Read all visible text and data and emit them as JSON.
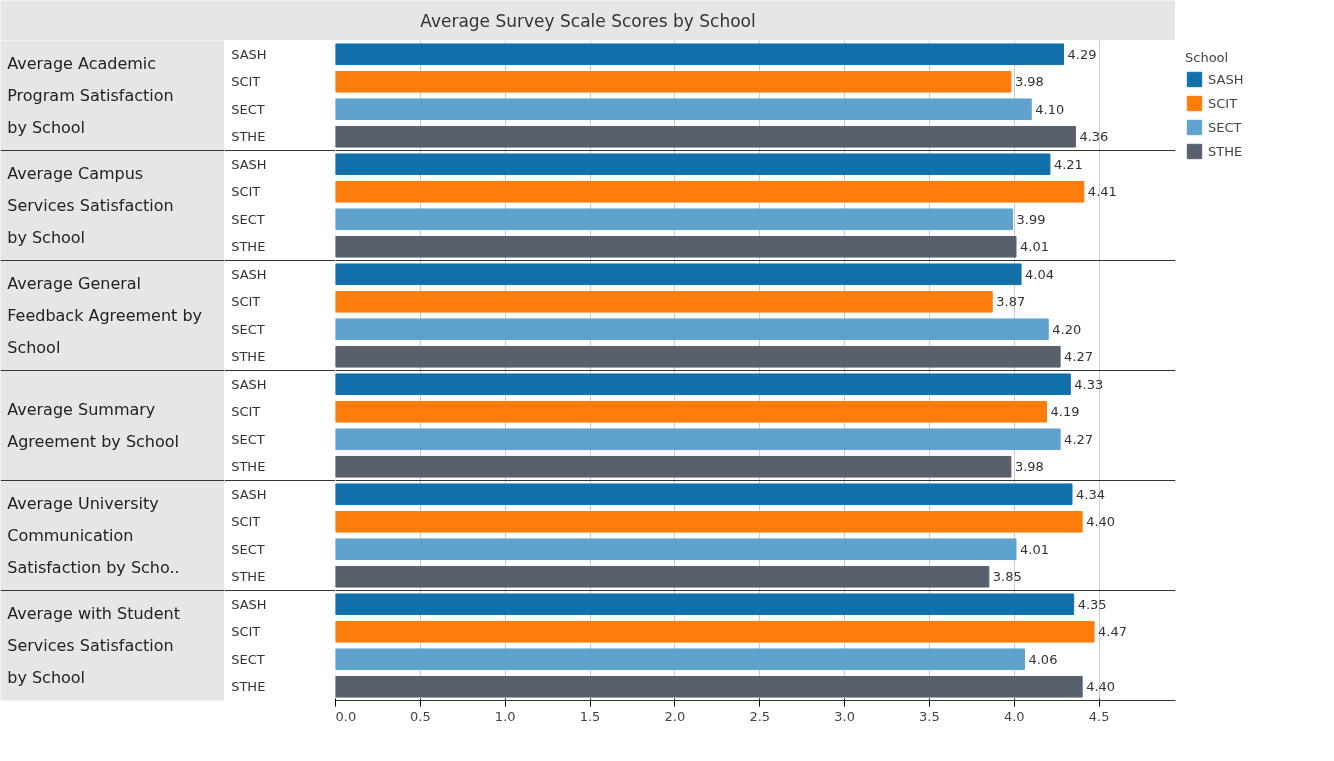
{
  "chart_data": {
    "type": "bar",
    "orientation": "horizontal",
    "title": "Average Survey Scale Scores by School",
    "legend_title": "School",
    "legend": "right",
    "grid": "x",
    "categories": [
      "Average Academic Program Satisfaction by School",
      "Average Campus Services Satisfaction by School",
      "Average General Feedback Agreement by School",
      "Average Summary Agreement by School",
      "Average University Communication Satisfaction by Scho..",
      "Average with Student Services Satisfaction by School"
    ],
    "xlim": [
      0,
      4.95
    ],
    "xticks": [
      {
        "value": 0,
        "label": "0.0"
      },
      {
        "value": 0.5,
        "label": "0.5"
      },
      {
        "value": 1,
        "label": "1.0"
      },
      {
        "value": 1.5,
        "label": "1.5"
      },
      {
        "value": 2,
        "label": "2.0"
      },
      {
        "value": 2.5,
        "label": "2.5"
      },
      {
        "value": 3,
        "label": "3.0"
      },
      {
        "value": 3.5,
        "label": "3.5"
      },
      {
        "value": 4,
        "label": "4.0"
      },
      {
        "value": 4.5,
        "label": "4.5"
      }
    ],
    "series": [
      {
        "name": "SASH",
        "color": "#1170aa",
        "values": [
          4.29,
          4.21,
          4.04,
          4.33,
          4.34,
          4.35
        ],
        "value_labels": [
          "4.29",
          "4.21",
          "4.04",
          "4.33",
          "4.34",
          "4.35"
        ]
      },
      {
        "name": "SCIT",
        "color": "#fc7d0b",
        "values": [
          3.98,
          4.41,
          3.87,
          4.19,
          4.4,
          4.47
        ],
        "value_labels": [
          "3.98",
          "4.41",
          "3.87",
          "4.19",
          "4.40",
          "4.47"
        ]
      },
      {
        "name": "SECT",
        "color": "#5fa2ce",
        "values": [
          4.1,
          3.99,
          4.2,
          4.27,
          4.01,
          4.06
        ],
        "value_labels": [
          "4.10",
          "3.99",
          "4.20",
          "4.27",
          "4.01",
          "4.06"
        ]
      },
      {
        "name": "STHE",
        "color": "#57606c",
        "values": [
          4.36,
          4.01,
          4.27,
          3.98,
          3.85,
          4.4
        ],
        "value_labels": [
          "4.36",
          "4.01",
          "4.27",
          "3.98",
          "3.85",
          "4.40"
        ]
      }
    ]
  }
}
